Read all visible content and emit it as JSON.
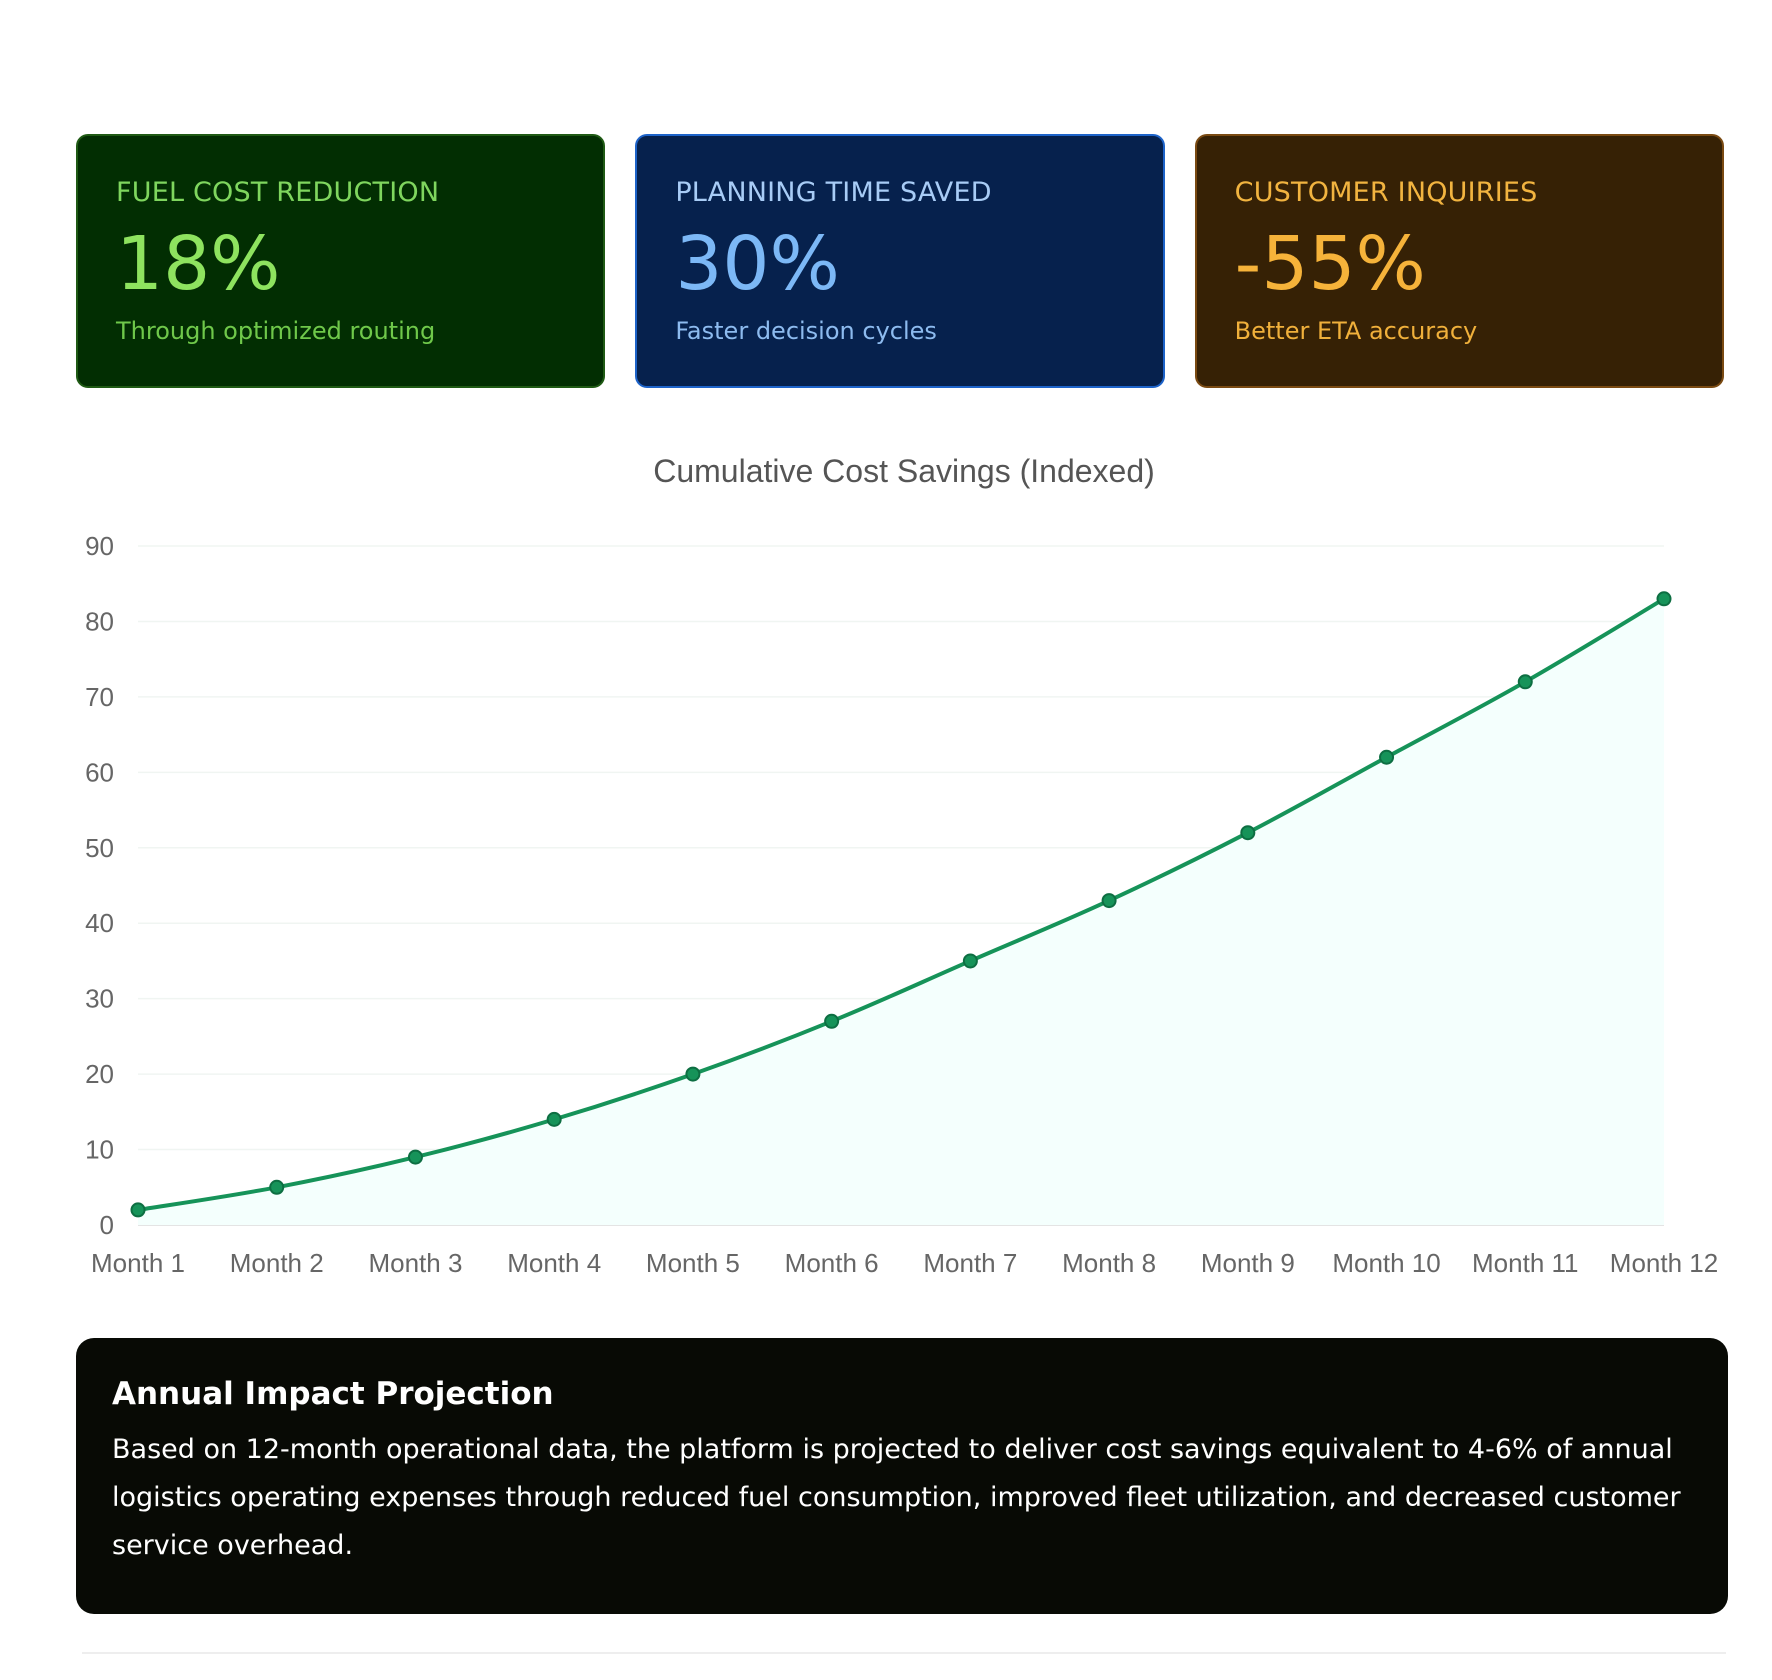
{
  "cards": [
    {
      "label": "FUEL COST REDUCTION",
      "value": "18%",
      "desc": "Through optimized routing"
    },
    {
      "label": "PLANNING TIME SAVED",
      "value": "30%",
      "desc": "Faster decision cycles"
    },
    {
      "label": "CUSTOMER INQUIRIES",
      "value": "-55%",
      "desc": "Better ETA accuracy"
    }
  ],
  "chart_data": {
    "type": "line",
    "title": "Cumulative Cost Savings (Indexed)",
    "categories": [
      "Month 1",
      "Month 2",
      "Month 3",
      "Month 4",
      "Month 5",
      "Month 6",
      "Month 7",
      "Month 8",
      "Month 9",
      "Month 10",
      "Month 11",
      "Month 12"
    ],
    "series": [
      {
        "values": [
          2,
          5,
          9,
          14,
          20,
          27,
          35,
          43,
          52,
          62,
          72,
          83
        ]
      }
    ],
    "ylim": [
      0,
      90
    ],
    "yticks": [
      0,
      10,
      20,
      30,
      40,
      50,
      60,
      70,
      80,
      90
    ],
    "area_fill": true,
    "grid": true,
    "colors": {
      "line": "#169359",
      "fill": "#f4fffd",
      "grid": "#f0f5f2"
    }
  },
  "impact": {
    "title": "Annual Impact Projection",
    "body": "Based on 12-month operational data, the platform is projected to deliver cost savings equivalent to 4-6% of annual logistics operating expenses through reduced fuel consumption, improved fleet utilization, and decreased customer service overhead."
  }
}
